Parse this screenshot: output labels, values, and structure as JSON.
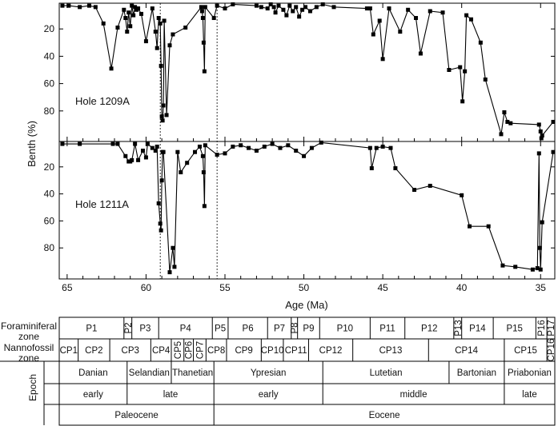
{
  "chart_data": [
    {
      "type": "line",
      "panel_label": "Hole 1209A",
      "ylabel": "Benth (%)",
      "xlabel": "Age (Ma)",
      "x_reversed": true,
      "y_reversed": true,
      "xlim": [
        65.5,
        34.1
      ],
      "ylim": [
        0,
        100
      ],
      "yticks": [
        20,
        40,
        60,
        80
      ],
      "series": [
        {
          "x": [
            65.3,
            64.9,
            64.2,
            63.6,
            63.2,
            62.7,
            62.2,
            61.8,
            61.4,
            61.3,
            61.2,
            61.1,
            61.0,
            60.9,
            60.8,
            60.7,
            60.6,
            60.5,
            60.3,
            60.0,
            59.6,
            59.4,
            59.3,
            59.2,
            59.1,
            59.05,
            59.0,
            58.95,
            58.9,
            58.85,
            58.7,
            58.5,
            58.3,
            57.5,
            56.5,
            56.45,
            56.4,
            56.35,
            56.3,
            56.25,
            55.7,
            55.5,
            55.0,
            54.5,
            53.0,
            52.7,
            52.3,
            52.1,
            51.9,
            51.8,
            51.6,
            51.3,
            51.1,
            50.9,
            50.7,
            50.5,
            50.3,
            50.1,
            49.9,
            49.6,
            49.2,
            48.8,
            48.1,
            46.0,
            45.8,
            45.6,
            45.2,
            45.0,
            44.6,
            43.9,
            43.4,
            42.9,
            42.6,
            42.0,
            41.2,
            40.8,
            40.1,
            39.95,
            39.8,
            39.7,
            39.4,
            38.8,
            38.5,
            37.5,
            37.3,
            37.1,
            36.9,
            35.1,
            35.0,
            34.95,
            34.9,
            34.2
          ],
          "y": [
            3,
            3,
            4,
            3,
            4,
            16,
            49,
            19,
            6,
            12,
            22,
            8,
            18,
            3,
            10,
            4,
            6,
            5,
            9,
            29,
            5,
            22,
            34,
            12,
            16,
            47,
            84,
            87,
            76,
            14,
            83,
            32,
            24,
            19,
            4,
            7,
            12,
            30,
            51,
            4,
            12,
            3,
            5,
            2,
            3,
            4,
            5,
            2,
            4,
            8,
            3,
            6,
            10,
            3,
            7,
            4,
            11,
            6,
            4,
            7,
            4,
            2,
            4,
            5,
            5,
            24,
            14,
            42,
            5,
            22,
            6,
            12,
            38,
            7,
            8,
            50,
            48,
            73,
            51,
            10,
            13,
            30,
            57,
            97,
            81,
            88,
            89,
            90,
            95,
            100,
            98,
            88
          ]
        }
      ]
    },
    {
      "type": "line",
      "panel_label": "Hole 1211A",
      "ylabel": "Benth (%)",
      "xlabel": "Age (Ma)",
      "x_reversed": true,
      "y_reversed": true,
      "xlim": [
        65.5,
        34.1
      ],
      "ylim": [
        0,
        100
      ],
      "yticks": [
        20,
        40,
        60,
        80
      ],
      "series": [
        {
          "x": [
            65.3,
            64.2,
            62.1,
            61.8,
            61.3,
            61.1,
            61.0,
            60.9,
            60.7,
            60.5,
            60.2,
            60.0,
            59.9,
            59.6,
            59.4,
            59.3,
            59.2,
            59.1,
            59.05,
            59.0,
            58.95,
            58.9,
            58.5,
            58.3,
            58.2,
            58.0,
            57.8,
            57.4,
            56.9,
            56.6,
            56.4,
            56.35,
            56.3,
            56.25,
            55.5,
            55.0,
            54.5,
            54.0,
            53.5,
            53.0,
            52.5,
            52.0,
            51.5,
            51.0,
            50.5,
            50.0,
            49.5,
            48.9,
            45.8,
            45.7,
            45.4,
            45.0,
            44.5,
            44.2,
            43.0,
            42.0,
            40.0,
            39.5,
            38.3,
            37.4,
            36.6,
            35.5,
            35.2,
            35.1,
            35.05,
            35.0,
            34.9,
            34.2
          ],
          "y": [
            3,
            3,
            3,
            3,
            12,
            16,
            16,
            15,
            3,
            15,
            8,
            13,
            3,
            6,
            8,
            5,
            47,
            62,
            67,
            30,
            9,
            9,
            98,
            80,
            94,
            9,
            24,
            17,
            9,
            5,
            12,
            24,
            49,
            4,
            11,
            10,
            5,
            4,
            6,
            8,
            5,
            3,
            6,
            4,
            8,
            12,
            6,
            2,
            6,
            21,
            6,
            5,
            6,
            21,
            37,
            34,
            41,
            64,
            64,
            93,
            94,
            96,
            95,
            10,
            80,
            96,
            61,
            9
          ]
        }
      ]
    }
  ],
  "axis": {
    "ylabel": "Benth (%)",
    "xlabel": "Age (Ma)",
    "xticks": [
      "65",
      "60",
      "55",
      "50",
      "45",
      "40",
      "35"
    ],
    "yticks_top": [
      "20",
      "40",
      "60",
      "80"
    ],
    "yticks_bottom": [
      "20",
      "40",
      "60",
      "80"
    ]
  },
  "panel_labels": {
    "top": "Hole 1209A",
    "bottom": "Hole 1211A"
  },
  "dashed_lines_ma": [
    59.1,
    55.5
  ],
  "zone_labels": {
    "foraminiferal": "Foraminiferal zone",
    "foraminiferal_line1": "Foraminiferal",
    "foraminiferal_line2": "zone",
    "nannofossil": "Nannofossil zone",
    "nannofossil_line1": "Nannofossil",
    "nannofossil_line2": "zone",
    "epoch": "Epoch"
  },
  "zones": {
    "foraminiferal": [
      {
        "name": "P1",
        "from": 65.5,
        "to": 61.4
      },
      {
        "name": "P2",
        "from": 61.4,
        "to": 60.9,
        "vertical": true
      },
      {
        "name": "P3",
        "from": 60.9,
        "to": 59.2
      },
      {
        "name": "P4",
        "from": 59.2,
        "to": 55.8
      },
      {
        "name": "P5",
        "from": 55.8,
        "to": 54.8
      },
      {
        "name": "P6",
        "from": 54.8,
        "to": 52.3
      },
      {
        "name": "P7",
        "from": 52.3,
        "to": 50.8
      },
      {
        "name": "P8",
        "from": 50.8,
        "to": 50.4,
        "vertical": true
      },
      {
        "name": "P9",
        "from": 50.4,
        "to": 49.0
      },
      {
        "name": "P10",
        "from": 49.0,
        "to": 45.8
      },
      {
        "name": "P11",
        "from": 45.8,
        "to": 43.6
      },
      {
        "name": "P12",
        "from": 43.6,
        "to": 40.5
      },
      {
        "name": "P13",
        "from": 40.5,
        "to": 40.0,
        "vertical": true
      },
      {
        "name": "P14",
        "from": 40.0,
        "to": 38.0
      },
      {
        "name": "P15",
        "from": 38.0,
        "to": 35.3
      },
      {
        "name": "P16",
        "from": 35.3,
        "to": 34.6,
        "vertical": true
      },
      {
        "name": "P17",
        "from": 34.6,
        "to": 34.1,
        "vertical": true
      }
    ],
    "nannofossil": [
      {
        "name": "CP1",
        "from": 65.5,
        "to": 64.3
      },
      {
        "name": "CP2",
        "from": 64.3,
        "to": 62.3
      },
      {
        "name": "CP3",
        "from": 62.3,
        "to": 59.7
      },
      {
        "name": "CP4",
        "from": 59.7,
        "to": 58.4
      },
      {
        "name": "CP5",
        "from": 58.4,
        "to": 57.6,
        "vertical": true
      },
      {
        "name": "CP6",
        "from": 57.6,
        "to": 57.0,
        "vertical": true
      },
      {
        "name": "CP7",
        "from": 57.0,
        "to": 56.2,
        "vertical": true
      },
      {
        "name": "CP8",
        "from": 56.2,
        "to": 54.9
      },
      {
        "name": "CP9",
        "from": 54.9,
        "to": 52.7
      },
      {
        "name": "CP10",
        "from": 52.7,
        "to": 51.3
      },
      {
        "name": "CP11",
        "from": 51.3,
        "to": 49.7
      },
      {
        "name": "CP12",
        "from": 49.7,
        "to": 46.9
      },
      {
        "name": "CP13",
        "from": 46.9,
        "to": 42.1
      },
      {
        "name": "CP14",
        "from": 42.1,
        "to": 37.3
      },
      {
        "name": "CP15",
        "from": 37.3,
        "to": 34.6
      },
      {
        "name": "CP16",
        "from": 34.6,
        "to": 34.1,
        "vertical": true
      }
    ],
    "stage": [
      {
        "name": "Danian",
        "from": 65.5,
        "to": 61.2
      },
      {
        "name": "Selandian",
        "from": 61.2,
        "to": 58.4
      },
      {
        "name": "Thanetian",
        "from": 58.4,
        "to": 55.7
      },
      {
        "name": "Ypresian",
        "from": 55.7,
        "to": 48.8
      },
      {
        "name": "Lutetian",
        "from": 48.8,
        "to": 40.8
      },
      {
        "name": "Bartonian",
        "from": 40.8,
        "to": 37.3
      },
      {
        "name": "Priabonian",
        "from": 37.3,
        "to": 34.1
      }
    ],
    "subepoch": [
      {
        "name": "early",
        "from": 65.5,
        "to": 61.2
      },
      {
        "name": "late",
        "from": 61.2,
        "to": 55.7
      },
      {
        "name": "early",
        "from": 55.7,
        "to": 48.8
      },
      {
        "name": "middle",
        "from": 48.8,
        "to": 37.3
      },
      {
        "name": "late",
        "from": 37.3,
        "to": 34.1
      }
    ],
    "epoch": [
      {
        "name": "Paleocene",
        "from": 65.5,
        "to": 55.7
      },
      {
        "name": "Eocene",
        "from": 55.7,
        "to": 34.1
      }
    ]
  }
}
